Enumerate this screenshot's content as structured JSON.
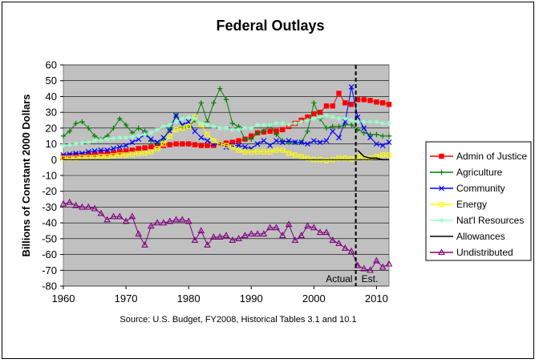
{
  "chart_data": {
    "type": "line",
    "title": "Federal Outlays",
    "ylabel": "Billions of Constant 2000 Dollars",
    "xlabel": "",
    "xlim": [
      1960,
      2012
    ],
    "ylim": [
      -80,
      60
    ],
    "x_ticks": [
      1960,
      1970,
      1980,
      1990,
      2000,
      2010
    ],
    "y_ticks": [
      -80,
      -70,
      -60,
      -50,
      -40,
      -30,
      -20,
      -10,
      0,
      10,
      20,
      30,
      40,
      50,
      60
    ],
    "grid": true,
    "legend": "right",
    "source": "Source: U.S. Budget, FY2008, Historical Tables 3.1 and 10.1",
    "divider": {
      "x": 2006.7,
      "left_label": "Actual",
      "right_label": "Est."
    },
    "x": [
      1960,
      1961,
      1962,
      1963,
      1964,
      1965,
      1966,
      1967,
      1968,
      1969,
      1970,
      1971,
      1972,
      1973,
      1974,
      1975,
      1976,
      1977,
      1978,
      1979,
      1980,
      1981,
      1982,
      1983,
      1984,
      1985,
      1986,
      1987,
      1988,
      1989,
      1990,
      1991,
      1992,
      1993,
      1994,
      1995,
      1996,
      1997,
      1998,
      1999,
      2000,
      2001,
      2002,
      2003,
      2004,
      2005,
      2006,
      2007,
      2008,
      2009,
      2010,
      2011,
      2012
    ],
    "series": [
      {
        "name": "Admin of Justice",
        "color": "#ff0000",
        "marker": "square",
        "values": [
          2,
          2.5,
          3,
          3,
          3.5,
          3.5,
          4,
          4,
          4.5,
          5,
          5.5,
          6,
          7,
          7.5,
          8,
          9,
          9,
          9.5,
          10,
          10,
          10,
          9.5,
          9,
          9,
          9,
          10,
          10.5,
          11,
          12,
          13,
          15,
          17,
          17.5,
          18,
          18,
          19,
          21,
          23,
          25,
          27,
          29,
          30,
          34,
          34,
          42,
          36,
          35,
          38,
          38,
          37.5,
          36.5,
          36,
          35
        ]
      },
      {
        "name": "Agriculture",
        "color": "#008000",
        "marker": "plus",
        "values": [
          15,
          18,
          23,
          24,
          20,
          15,
          13,
          15,
          20,
          26,
          22,
          17,
          20,
          18,
          12,
          10,
          13,
          20,
          28,
          21,
          21,
          25,
          36,
          24,
          36,
          45,
          38,
          23,
          21,
          13,
          13,
          17,
          18,
          22,
          16,
          12,
          11,
          11,
          11,
          18,
          36,
          26,
          20,
          21,
          21,
          22,
          22,
          19,
          17,
          16,
          16,
          15,
          15
        ]
      },
      {
        "name": "Community",
        "color": "#0000ff",
        "marker": "x",
        "values": [
          3,
          3.5,
          4,
          4,
          5,
          5.5,
          6,
          6,
          7,
          8,
          9,
          11,
          13,
          16,
          13,
          11,
          14,
          18,
          28,
          22,
          24,
          18,
          14,
          12,
          10,
          10,
          8,
          9,
          9,
          8,
          7,
          10,
          12,
          9,
          12,
          11,
          12,
          11,
          11,
          10,
          12,
          11,
          12,
          18,
          14,
          24,
          46,
          27,
          20,
          14,
          10,
          9,
          11
        ]
      },
      {
        "name": "Energy",
        "color": "#ffff00",
        "marker": "square-open",
        "values": [
          1,
          1,
          1,
          1.5,
          1.5,
          1.5,
          2,
          2,
          2.5,
          3,
          3,
          3.5,
          4,
          4,
          5,
          7,
          10,
          15,
          19,
          20,
          21,
          27,
          22,
          16,
          12,
          10,
          9,
          8,
          6,
          5,
          5,
          5,
          5,
          5,
          6,
          6,
          4,
          3,
          2,
          1,
          0,
          0,
          -0.5,
          0,
          1,
          1,
          0.5,
          2,
          1,
          1,
          2,
          3,
          3
        ]
      },
      {
        "name": "Nat'l Resources",
        "color": "#99ffcc",
        "marker": "star",
        "values": [
          9,
          9.5,
          10,
          10.5,
          11,
          12,
          12.5,
          13,
          13.5,
          14,
          14,
          14.5,
          15,
          16,
          17,
          19,
          21,
          22,
          24,
          26,
          27,
          26,
          23,
          22,
          21,
          20,
          20,
          19,
          19,
          20,
          20,
          22,
          22,
          22,
          23,
          23,
          22,
          23,
          24,
          25,
          26,
          27,
          28,
          27,
          26,
          26,
          25,
          24,
          24,
          24,
          24,
          23,
          23
        ]
      },
      {
        "name": "Allowances",
        "color": "#000000",
        "marker": "none",
        "values": [
          null,
          null,
          null,
          null,
          null,
          null,
          null,
          null,
          null,
          null,
          null,
          null,
          null,
          null,
          null,
          null,
          null,
          null,
          null,
          null,
          null,
          null,
          null,
          null,
          null,
          null,
          null,
          null,
          null,
          null,
          null,
          null,
          null,
          null,
          null,
          null,
          null,
          null,
          null,
          null,
          null,
          null,
          null,
          null,
          null,
          null,
          null,
          6,
          2,
          1,
          1,
          0,
          0
        ]
      },
      {
        "name": "Undistributed",
        "color": "#800080",
        "marker": "triangle",
        "values": [
          -28,
          -27,
          -29,
          -30,
          -30,
          -31,
          -34,
          -38,
          -36,
          -36,
          -39,
          -36,
          -47,
          -54,
          -42,
          -40,
          -40,
          -39,
          -38,
          -38,
          -39,
          -51,
          -45,
          -54,
          -49,
          -49,
          -48,
          -51,
          -50,
          -48,
          -47,
          -47,
          -47,
          -43,
          -43,
          -48,
          -41,
          -51,
          -48,
          -42,
          -43,
          -46,
          -46,
          -51,
          -53,
          -56,
          -58,
          -67,
          -69,
          -70,
          -64,
          -68,
          -66
        ]
      }
    ]
  }
}
